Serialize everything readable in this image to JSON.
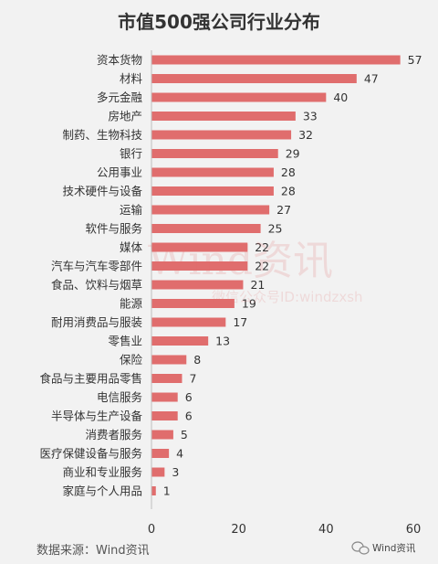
{
  "chart_data": {
    "type": "bar",
    "orientation": "horizontal",
    "title": "市值500强公司行业分布",
    "categories": [
      "资本货物",
      "材料",
      "多元金融",
      "房地产",
      "制药、生物科技",
      "银行",
      "公用事业",
      "技术硬件与设备",
      "运输",
      "软件与服务",
      "媒体",
      "汽车与汽车零部件",
      "食品、饮料与烟草",
      "能源",
      "耐用消费品与服装",
      "零售业",
      "保险",
      "食品与主要用品零售",
      "电信服务",
      "半导体与生产设备",
      "消费者服务",
      "医疗保健设备与服务",
      "商业和专业服务",
      "家庭与个人用品"
    ],
    "values": [
      57,
      47,
      40,
      33,
      32,
      29,
      28,
      28,
      27,
      25,
      22,
      22,
      21,
      19,
      17,
      13,
      8,
      7,
      6,
      6,
      5,
      4,
      3,
      1
    ],
    "xlim": [
      0,
      60
    ],
    "xticks": [
      "0",
      "20",
      "40",
      "60"
    ],
    "grid": false,
    "bar_color": "#e06d6d"
  },
  "source_text": "数据来源：Wind资讯",
  "watermark": {
    "main": "Wind资讯",
    "sub": "微信公众号ID:windzxsh"
  },
  "brand": {
    "icon": "wechat-logo-icon",
    "label": "Wind资讯"
  }
}
